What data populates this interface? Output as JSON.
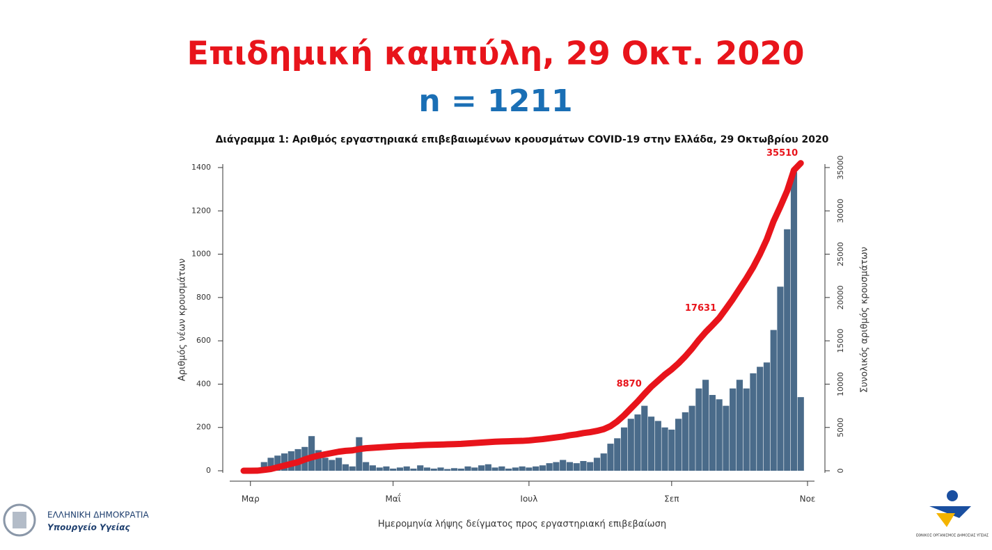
{
  "chart_data": {
    "type": "bar",
    "title": "Επιδημική καμπύλη, 29 Οκτ. 2020",
    "subtitle": "n = 1211",
    "chart_title": "Διάγραμμα 1: Αριθμός εργαστηριακά επιβεβαιωμένων κρουσμάτων COVID-19 στην Ελλάδα, 29 Οκτωβρίου 2020",
    "xlabel": "Ημερομηνία λήψης δείγματος προς εργαστηριακή επιβεβαίωση",
    "ylabel": "Αριθμός νέων κρουσμάτων",
    "y2label": "Συνολικός αριθμός κρουσμάτων",
    "categories": [
      null,
      "Μαρ",
      null,
      null,
      null,
      null,
      null,
      null,
      null,
      null,
      null,
      null,
      null,
      null,
      null,
      null,
      null,
      null,
      null,
      null,
      null,
      null,
      "Μαΐ",
      null,
      null,
      null,
      null,
      null,
      null,
      null,
      null,
      null,
      null,
      null,
      null,
      null,
      null,
      null,
      null,
      null,
      null,
      null,
      "Ιουλ",
      null,
      null,
      null,
      null,
      null,
      null,
      null,
      null,
      null,
      null,
      null,
      null,
      null,
      null,
      null,
      null,
      null,
      null,
      null,
      null,
      "Σεπ",
      null,
      null,
      null,
      null,
      null,
      null,
      null,
      null,
      null,
      null,
      null,
      null,
      null,
      null,
      null,
      null,
      null,
      null,
      null,
      "Νοε"
    ],
    "series": [
      {
        "color": "#4a6b8a",
        "values": [
          0,
          3,
          10,
          40,
          60,
          70,
          80,
          90,
          100,
          110,
          160,
          95,
          60,
          50,
          60,
          30,
          20,
          155,
          40,
          25,
          15,
          20,
          10,
          15,
          20,
          10,
          25,
          15,
          10,
          15,
          8,
          12,
          10,
          20,
          15,
          25,
          30,
          15,
          20,
          10,
          15,
          20,
          15,
          20,
          25,
          35,
          40,
          50,
          40,
          35,
          45,
          40,
          60,
          80,
          125,
          150,
          200,
          240,
          260,
          300,
          250,
          230,
          200,
          190,
          240,
          270,
          300,
          380,
          420,
          350,
          330,
          300,
          380,
          420,
          380,
          450,
          480,
          500,
          650,
          850,
          1115,
          1380,
          340,
          null
        ]
      },
      {
        "color": "#e8141b",
        "axis": "y2",
        "values": [
          0,
          4,
          10,
          100,
          200,
          400,
          600,
          800,
          1000,
          1300,
          1550,
          1750,
          1900,
          2050,
          2200,
          2300,
          2350,
          2500,
          2600,
          2650,
          2700,
          2750,
          2800,
          2850,
          2880,
          2900,
          2950,
          2980,
          3000,
          3020,
          3050,
          3070,
          3100,
          3150,
          3200,
          3250,
          3300,
          3350,
          3380,
          3400,
          3430,
          3450,
          3500,
          3580,
          3650,
          3750,
          3850,
          3950,
          4100,
          4200,
          4350,
          4450,
          4600,
          4800,
          5150,
          5700,
          6400,
          7200,
          8000,
          8870,
          9700,
          10400,
          11100,
          11700,
          12400,
          13200,
          14100,
          15100,
          16000,
          16800,
          17631,
          18700,
          19800,
          21000,
          22200,
          23500,
          25000,
          26700,
          28800,
          30500,
          32300,
          34700,
          35510,
          null
        ],
        "value_labels": [
          null,
          null,
          null,
          null,
          null,
          null,
          null,
          null,
          null,
          null,
          null,
          null,
          null,
          null,
          null,
          null,
          null,
          null,
          null,
          null,
          null,
          null,
          null,
          null,
          null,
          null,
          null,
          null,
          null,
          null,
          null,
          null,
          null,
          null,
          null,
          null,
          null,
          null,
          null,
          null,
          null,
          null,
          null,
          null,
          null,
          null,
          null,
          null,
          null,
          null,
          null,
          null,
          null,
          null,
          null,
          null,
          null,
          null,
          null,
          "8870",
          null,
          null,
          null,
          null,
          null,
          null,
          null,
          null,
          null,
          null,
          "17631",
          null,
          null,
          null,
          null,
          null,
          null,
          null,
          null,
          null,
          null,
          null,
          "35510",
          null
        ]
      }
    ],
    "ylim": [
      -40,
      1440
    ],
    "yticks": [
      0,
      200,
      400,
      600,
      800,
      1000,
      1200,
      1400
    ],
    "y2lim": [
      -1000,
      36000
    ],
    "y2ticks": [
      0,
      5000,
      10000,
      15000,
      20000,
      25000,
      30000,
      35000
    ]
  },
  "footer": {
    "ministry_country": "ΕΛΛΗΝΙΚΗ ΔΗΜΟΚΡΑΤΙΑ",
    "ministry_name": "Υπουργείο Υγείας",
    "eody": "ΕΘΝΙΚΟΣ ΟΡΓΑΝΙΣΜΟΣ ΔΗΜΟΣΙΑΣ ΥΓΕΙΑΣ"
  }
}
